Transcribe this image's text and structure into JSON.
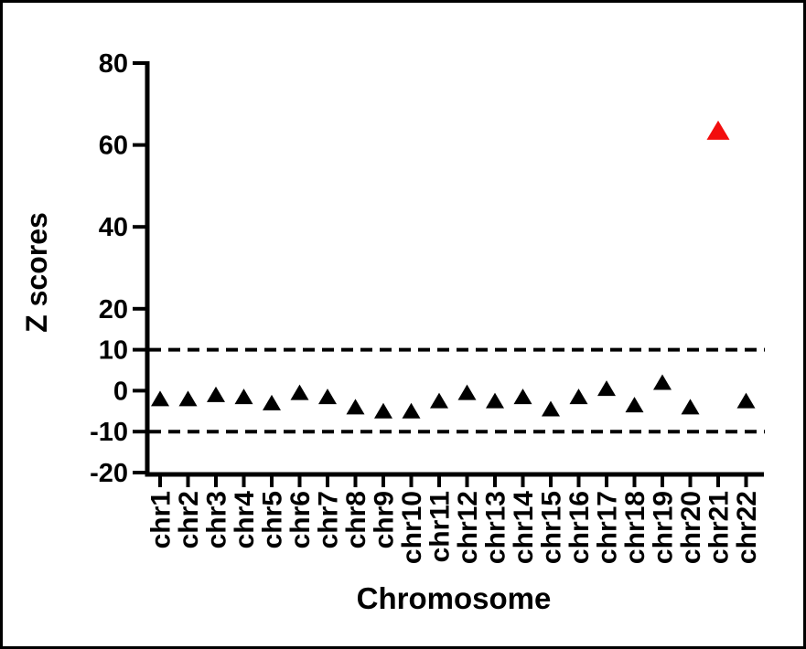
{
  "figure": {
    "background": "#ffffff",
    "border_color": "#000000"
  },
  "chart_data": {
    "type": "scatter",
    "title": "",
    "xlabel": "Chromosome",
    "ylabel": "Z scores",
    "marker": "triangle-up",
    "categories": [
      "chr1",
      "chr2",
      "chr3",
      "chr4",
      "chr5",
      "chr6",
      "chr7",
      "chr8",
      "chr9",
      "chr10",
      "chr11",
      "chr12",
      "chr13",
      "chr14",
      "chr15",
      "chr16",
      "chr17",
      "chr18",
      "chr19",
      "chr20",
      "chr21",
      "chr22"
    ],
    "values": [
      -2,
      -2,
      -1,
      -1.5,
      -3,
      -0.5,
      -1.5,
      -4,
      -5,
      -5,
      -2.5,
      -0.5,
      -2.5,
      -1.5,
      -4.5,
      -1.5,
      0.5,
      -3.5,
      2,
      -4,
      63.5,
      -2.5
    ],
    "point_color": "#000000",
    "highlight_category": "chr21",
    "highlight_index": 20,
    "highlight_color": "#F20D0D",
    "ylim": [
      -20,
      80
    ],
    "yticks": [
      {
        "label": "80",
        "value": 80
      },
      {
        "label": "60",
        "value": 60
      },
      {
        "label": "40",
        "value": 40
      },
      {
        "label": "20",
        "value": 20
      },
      {
        "label": "10",
        "value": 10
      },
      {
        "label": "0",
        "value": 0
      },
      {
        "label": "-10",
        "value": -10
      },
      {
        "label": "-20",
        "value": -20
      }
    ],
    "threshold_lines": [
      {
        "name": "upper-cutoff",
        "value": 10,
        "style": "dashed",
        "color": "#000000"
      },
      {
        "name": "lower-cutoff",
        "value": -10,
        "style": "dashed",
        "color": "#000000"
      }
    ],
    "grid": false,
    "legend": false
  }
}
